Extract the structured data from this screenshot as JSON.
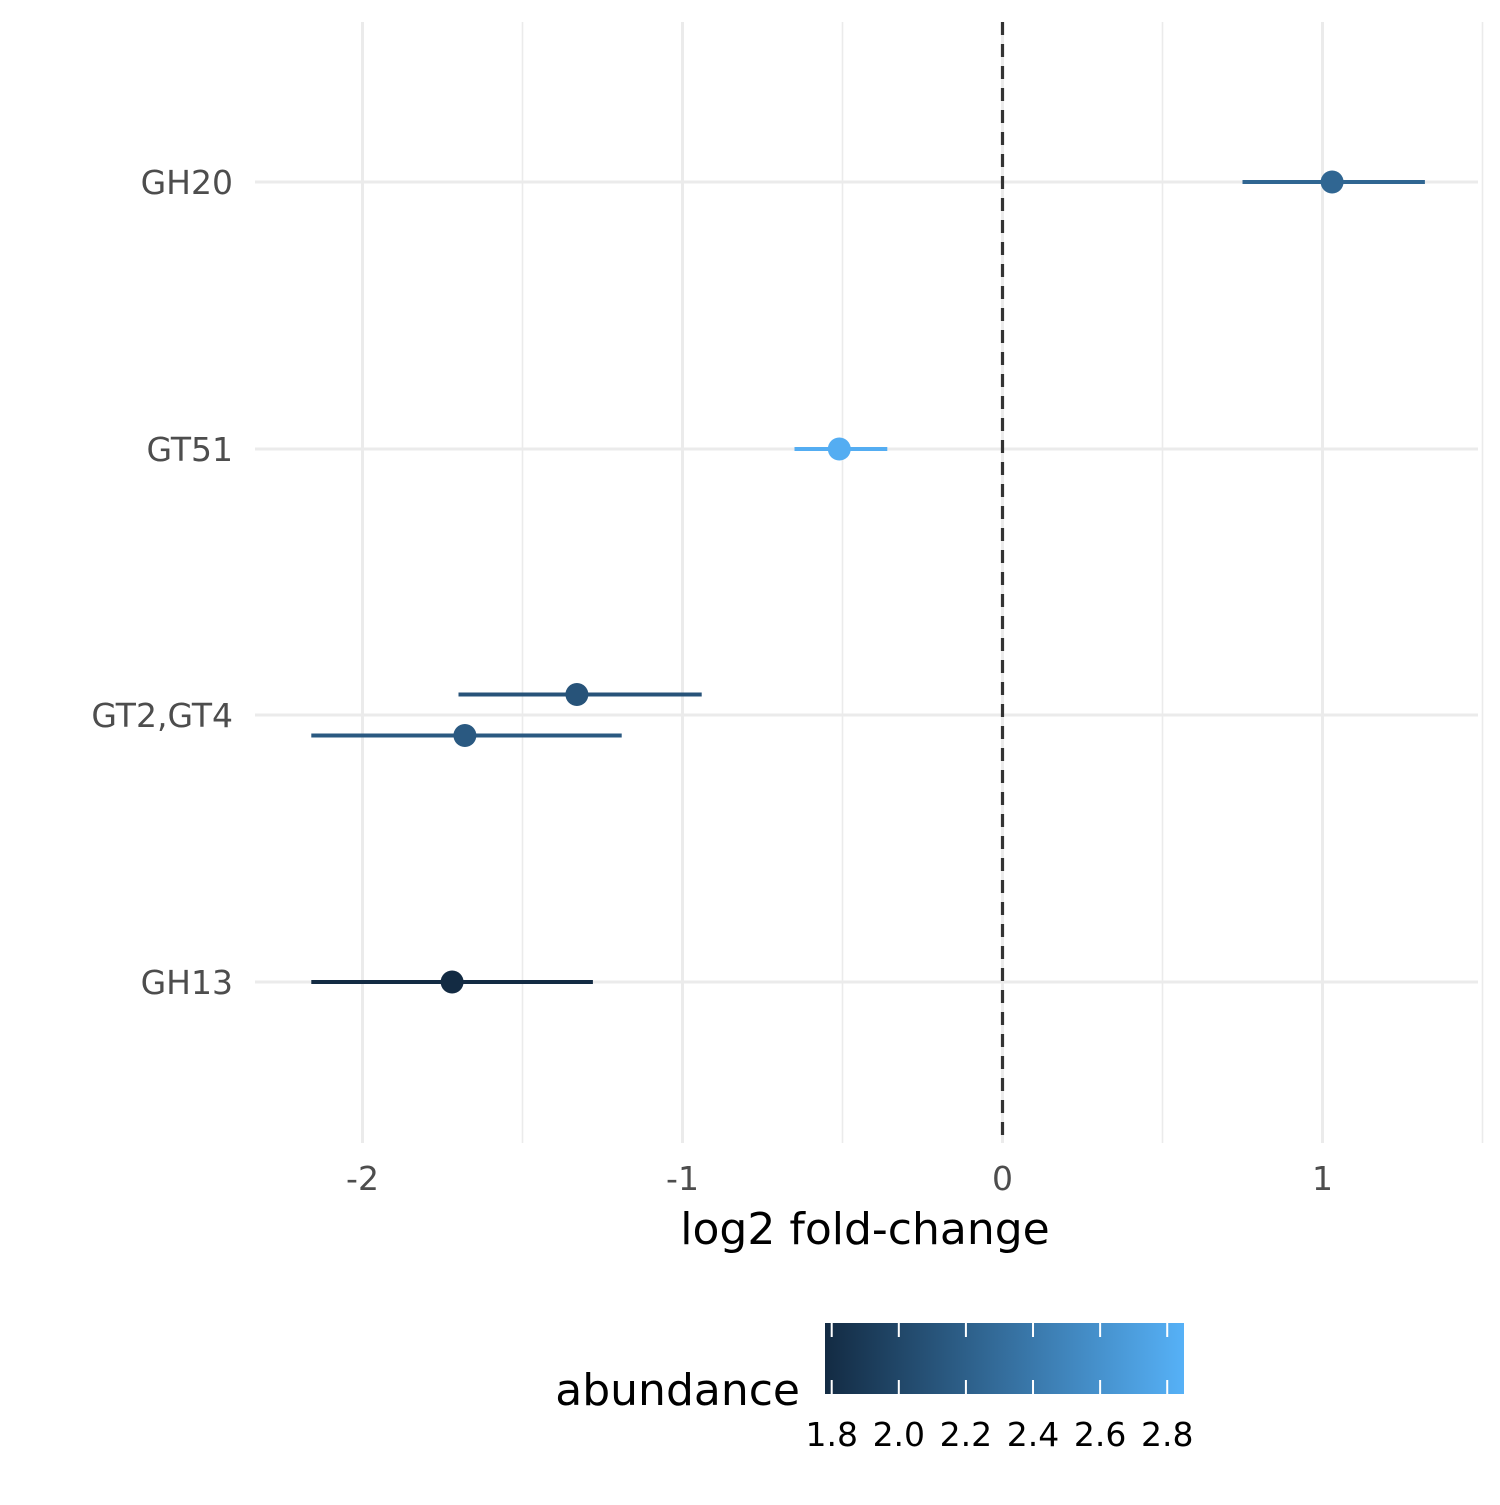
{
  "chart_data": {
    "type": "scatter",
    "subtype": "point-range",
    "title": "",
    "xlabel": "log2 fold-change",
    "ylabel": "",
    "xlim": [
      -2.45,
      1.48
    ],
    "x_ticks": [
      -2,
      -1,
      0,
      1
    ],
    "x_tick_labels": [
      "-2",
      "-1",
      "0",
      "1"
    ],
    "reference_line": {
      "x": 0,
      "style": "dashed",
      "color": "#333333"
    },
    "grid": true,
    "categories": [
      "GH20",
      "GT51",
      "GT2,GT4",
      "GH13"
    ],
    "points": [
      {
        "category": "GH20",
        "estimate": 1.03,
        "low": 0.75,
        "high": 1.32,
        "abundance": 2.25,
        "offset": 0
      },
      {
        "category": "GT51",
        "estimate": -0.51,
        "low": -0.65,
        "high": -0.36,
        "abundance": 2.82,
        "offset": 0
      },
      {
        "category": "GT2,GT4",
        "estimate": -1.33,
        "low": -1.7,
        "high": -0.94,
        "abundance": 2.1,
        "offset": -1
      },
      {
        "category": "GT2,GT4",
        "estimate": -1.68,
        "low": -2.16,
        "high": -1.19,
        "abundance": 2.15,
        "offset": 1
      },
      {
        "category": "GH13",
        "estimate": -1.72,
        "low": -2.16,
        "high": -1.28,
        "abundance": 1.78,
        "offset": 0
      }
    ],
    "legend": {
      "title": "abundance",
      "placement": "bottom",
      "type": "colorbar",
      "range": [
        1.78,
        2.85
      ],
      "ticks": [
        1.8,
        2.0,
        2.2,
        2.4,
        2.6,
        2.8
      ],
      "tick_labels": [
        "1.8",
        "2.0",
        "2.2",
        "2.4",
        "2.6",
        "2.8"
      ],
      "low_color": "#132B43",
      "high_color": "#56B1F7"
    },
    "colors": {
      "grid": "#ebebeb",
      "tick_text": "#4d4d4d"
    }
  }
}
